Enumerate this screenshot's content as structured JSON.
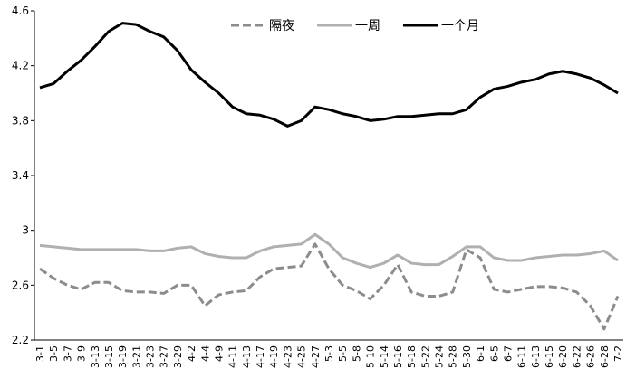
{
  "chart_data": {
    "type": "line",
    "categories": [
      "3-1",
      "3-5",
      "3-7",
      "3-9",
      "3-13",
      "3-15",
      "3-19",
      "3-21",
      "3-23",
      "3-27",
      "3-29",
      "4-2",
      "4-4",
      "4-9",
      "4-11",
      "4-13",
      "4-17",
      "4-19",
      "4-23",
      "4-25",
      "4-27",
      "5-3",
      "5-5",
      "5-8",
      "5-10",
      "5-14",
      "5-16",
      "5-18",
      "5-22",
      "5-24",
      "5-28",
      "5-30",
      "6-1",
      "6-5",
      "6-7",
      "6-11",
      "6-13",
      "6-15",
      "6-20",
      "6-22",
      "6-26",
      "6-28",
      "7-2"
    ],
    "series": [
      {
        "name": "隔夜",
        "color": "#8c8c8c",
        "dashed": true,
        "values": [
          2.72,
          2.65,
          2.6,
          2.57,
          2.62,
          2.62,
          2.56,
          2.55,
          2.55,
          2.54,
          2.6,
          2.6,
          2.45,
          2.53,
          2.55,
          2.56,
          2.66,
          2.72,
          2.73,
          2.74,
          2.9,
          2.72,
          2.6,
          2.56,
          2.5,
          2.6,
          2.75,
          2.55,
          2.52,
          2.52,
          2.55,
          2.86,
          2.8,
          2.57,
          2.55,
          2.57,
          2.59,
          2.59,
          2.58,
          2.55,
          2.45,
          2.28,
          2.52
        ]
      },
      {
        "name": "一周",
        "color": "#b0b0b0",
        "dashed": false,
        "values": [
          2.89,
          2.88,
          2.87,
          2.86,
          2.86,
          2.86,
          2.86,
          2.86,
          2.85,
          2.85,
          2.87,
          2.88,
          2.83,
          2.81,
          2.8,
          2.8,
          2.85,
          2.88,
          2.89,
          2.9,
          2.97,
          2.9,
          2.8,
          2.76,
          2.73,
          2.76,
          2.82,
          2.76,
          2.75,
          2.75,
          2.81,
          2.88,
          2.88,
          2.8,
          2.78,
          2.78,
          2.8,
          2.81,
          2.82,
          2.82,
          2.83,
          2.85,
          2.78
        ]
      },
      {
        "name": "一个月",
        "color": "#000000",
        "dashed": false,
        "values": [
          4.04,
          4.07,
          4.16,
          4.24,
          4.34,
          4.45,
          4.51,
          4.5,
          4.45,
          4.41,
          4.31,
          4.17,
          4.08,
          4.0,
          3.9,
          3.85,
          3.84,
          3.81,
          3.76,
          3.8,
          3.9,
          3.88,
          3.85,
          3.83,
          3.8,
          3.81,
          3.83,
          3.83,
          3.84,
          3.85,
          3.85,
          3.88,
          3.97,
          4.03,
          4.05,
          4.08,
          4.1,
          4.14,
          4.16,
          4.14,
          4.11,
          4.06,
          4.0
        ]
      }
    ],
    "ylim": [
      2.2,
      4.6
    ],
    "yticks": [
      2.2,
      2.6,
      3,
      3.4,
      3.8,
      4.2,
      4.6
    ]
  }
}
